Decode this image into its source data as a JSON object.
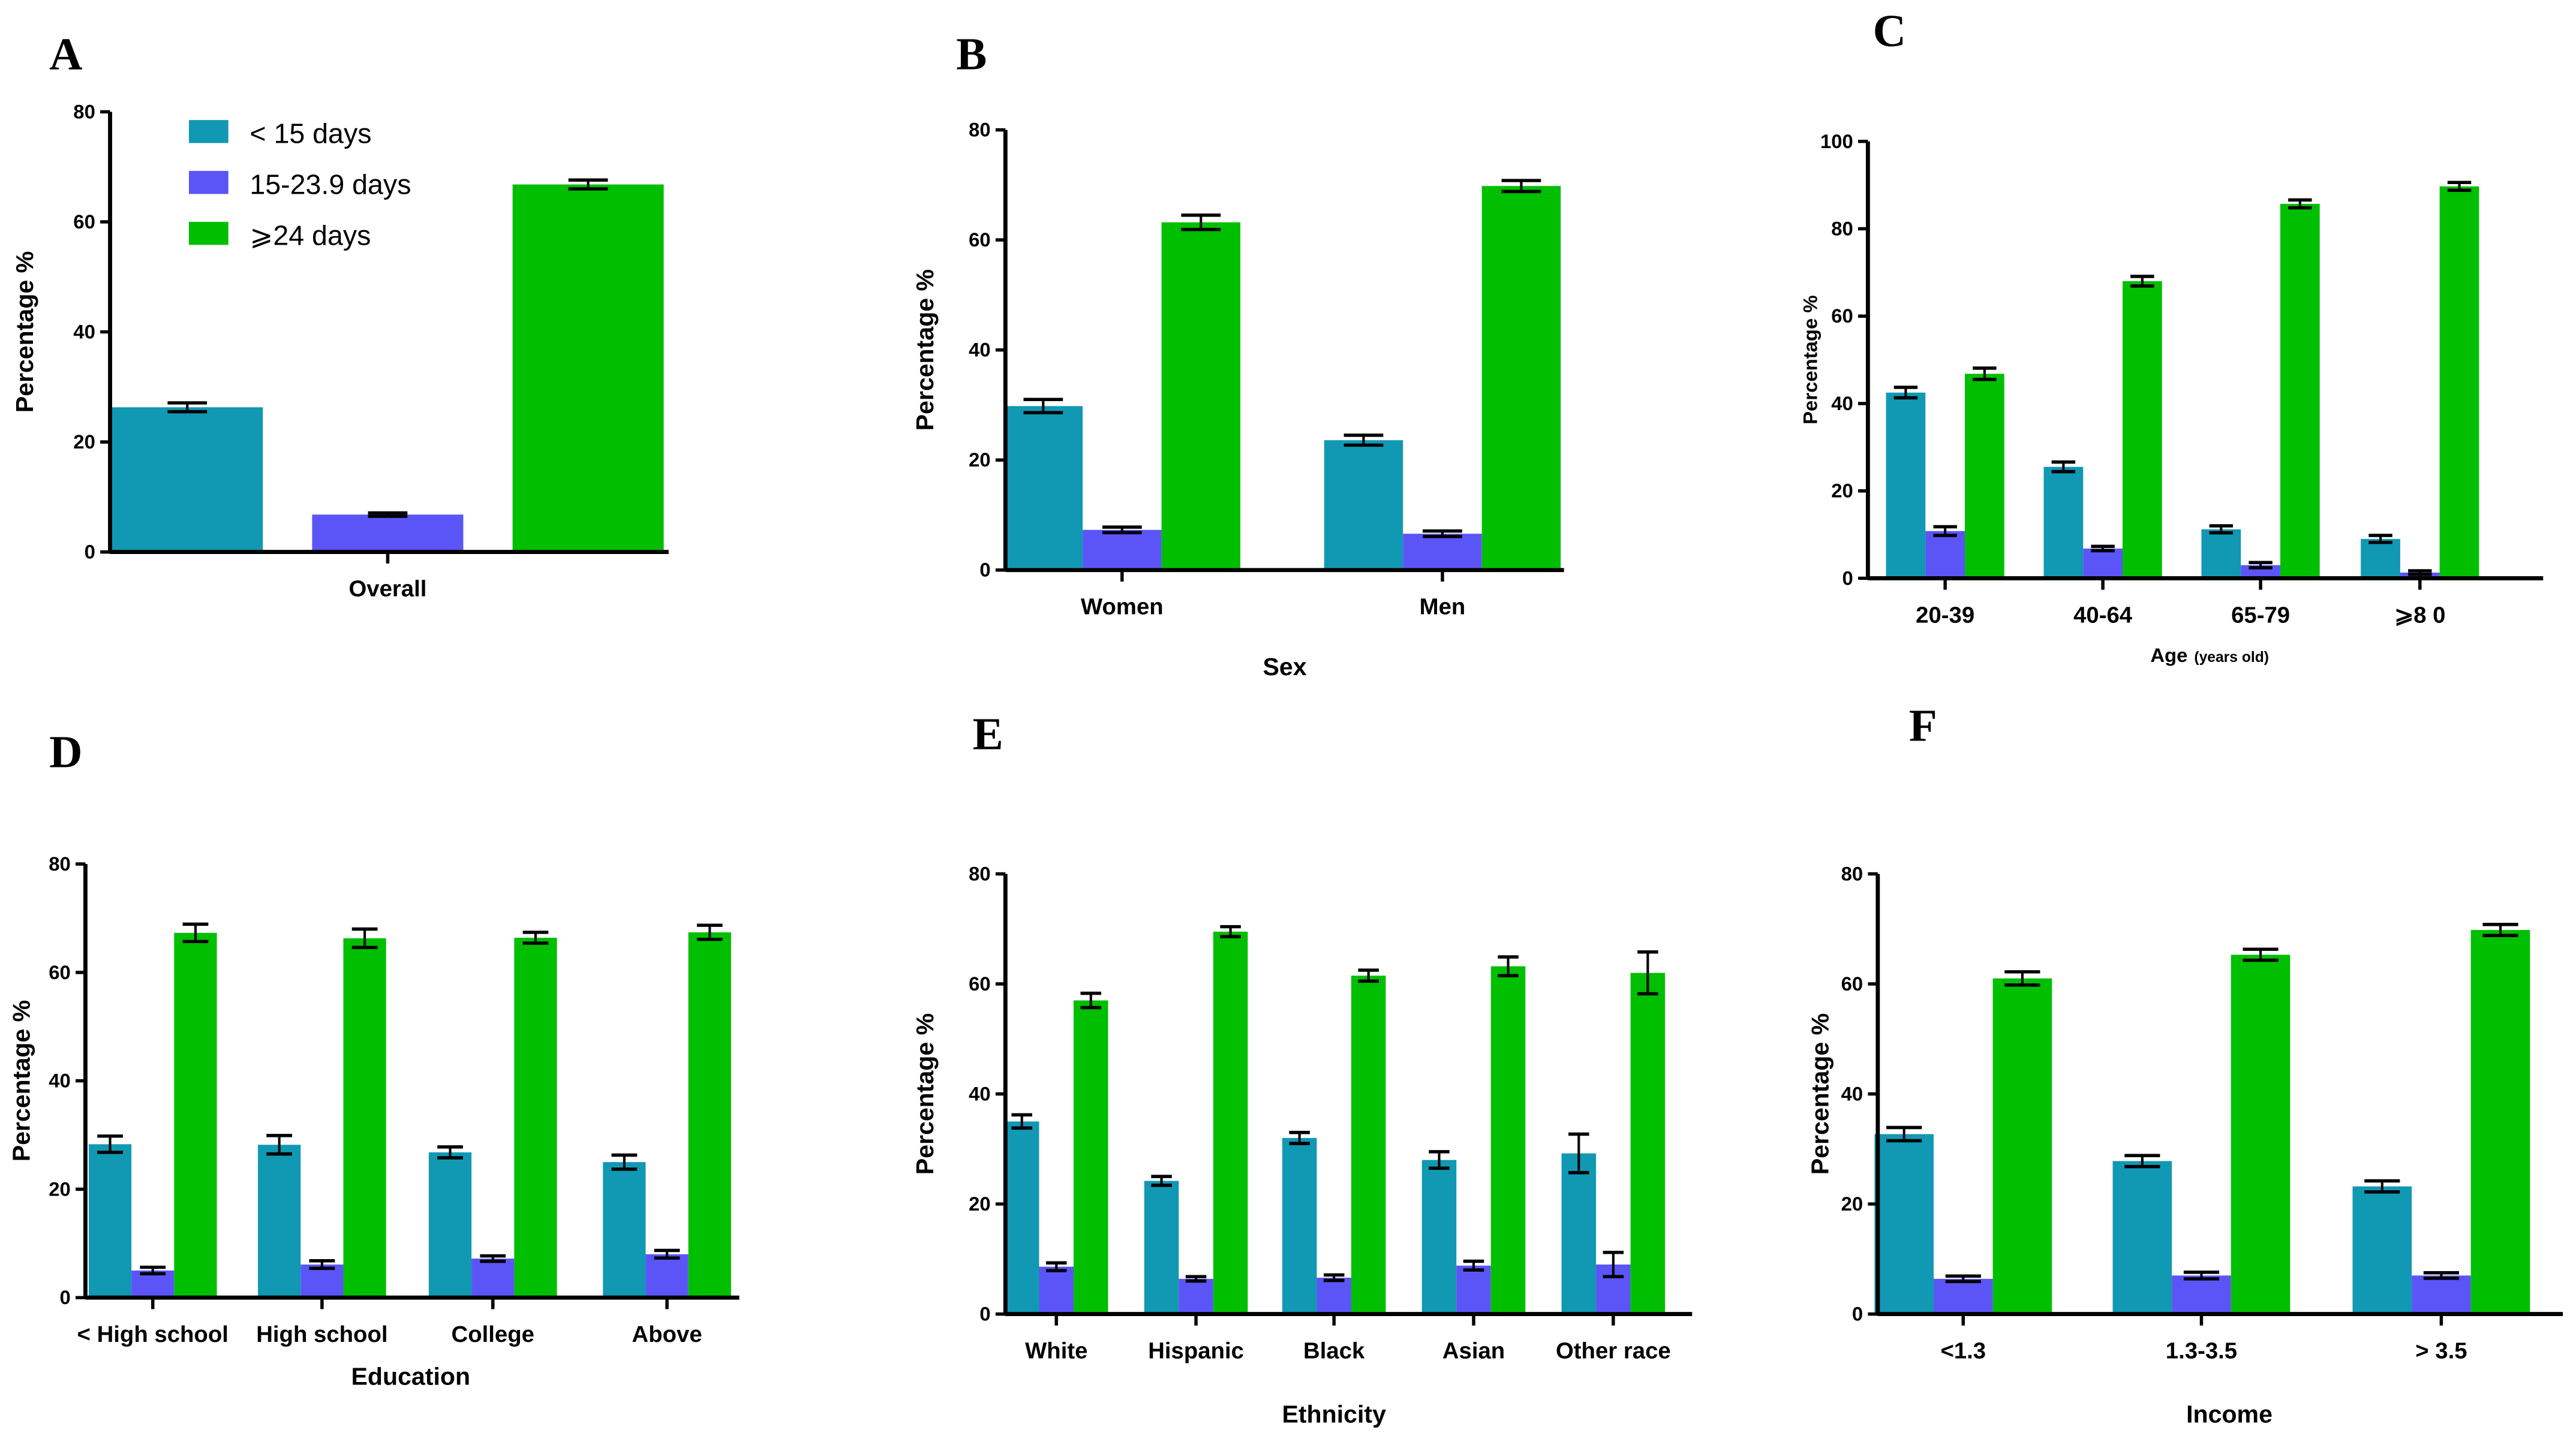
{
  "colors": {
    "lt15": "#1198b3",
    "mid": "#5b55f7",
    "ge24": "#00bf00"
  },
  "legend": [
    "< 15 days",
    "15-23.9 days",
    "⩾24 days"
  ],
  "chart_data": [
    {
      "panel": "A",
      "type": "bar",
      "ylabel": "Percentage %",
      "xlabel": "",
      "ylim": [
        0,
        80
      ],
      "yticks": [
        0,
        20,
        40,
        60,
        80
      ],
      "categories": [
        "Overall"
      ],
      "series": [
        {
          "name": "< 15 days",
          "values": [
            26.3
          ],
          "err": [
            0.8
          ]
        },
        {
          "name": "15-23.9 days",
          "values": [
            6.8
          ],
          "err": [
            0.3
          ]
        },
        {
          "name": "⩾24 days",
          "values": [
            66.8
          ],
          "err": [
            0.8
          ]
        }
      ]
    },
    {
      "panel": "B",
      "type": "bar",
      "ylabel": "Percentage %",
      "xlabel": "Sex",
      "ylim": [
        0,
        80
      ],
      "yticks": [
        0,
        20,
        40,
        60,
        80
      ],
      "categories": [
        "Women",
        "Men"
      ],
      "series": [
        {
          "name": "< 15 days",
          "values": [
            29.8,
            23.6
          ],
          "err": [
            1.2,
            0.9
          ]
        },
        {
          "name": "15-23.9 days",
          "values": [
            7.3,
            6.6
          ],
          "err": [
            0.5,
            0.5
          ]
        },
        {
          "name": "⩾24 days",
          "values": [
            63.2,
            69.8
          ],
          "err": [
            1.3,
            1.0
          ]
        }
      ]
    },
    {
      "panel": "C",
      "type": "bar",
      "ylabel": "Percentage %",
      "xlabel": "Age",
      "xlabel_note": "(years old)",
      "ylim": [
        0,
        100
      ],
      "yticks": [
        0,
        20,
        40,
        60,
        80,
        100
      ],
      "categories": [
        "20-39",
        "40-64",
        "65-79",
        "⩾8 0"
      ],
      "series": [
        {
          "name": "< 15 days",
          "values": [
            42.5,
            25.5,
            11.2,
            9.0
          ],
          "err": [
            1.2,
            1.1,
            0.8,
            0.8
          ]
        },
        {
          "name": "15-23.9 days",
          "values": [
            10.8,
            6.8,
            3.0,
            1.3
          ],
          "err": [
            1.0,
            0.5,
            0.6,
            0.4
          ]
        },
        {
          "name": "⩾24 days",
          "values": [
            46.8,
            68.0,
            85.7,
            89.7
          ],
          "err": [
            1.3,
            1.1,
            0.9,
            0.9
          ]
        }
      ]
    },
    {
      "panel": "D",
      "type": "bar",
      "ylabel": "Percentage %",
      "xlabel": "Education",
      "ylim": [
        0,
        80
      ],
      "yticks": [
        0,
        20,
        40,
        60,
        80
      ],
      "categories": [
        "< High school",
        "High school",
        "College",
        "Above"
      ],
      "series": [
        {
          "name": "< 15 days",
          "values": [
            28.3,
            28.2,
            26.8,
            25.0
          ],
          "err": [
            1.5,
            1.7,
            1.0,
            1.3
          ]
        },
        {
          "name": "15-23.9 days",
          "values": [
            5.0,
            6.1,
            7.2,
            8.0
          ],
          "err": [
            0.6,
            0.7,
            0.5,
            0.7
          ]
        },
        {
          "name": "⩾24 days",
          "values": [
            67.3,
            66.3,
            66.4,
            67.4
          ],
          "err": [
            1.6,
            1.7,
            1.0,
            1.3
          ]
        }
      ]
    },
    {
      "panel": "E",
      "type": "bar",
      "ylabel": "Percentage %",
      "xlabel": "Ethnicity",
      "ylim": [
        0,
        80
      ],
      "yticks": [
        0,
        20,
        40,
        60,
        80
      ],
      "categories": [
        "White",
        "Hispanic",
        "Black",
        "Asian",
        "Other race"
      ],
      "series": [
        {
          "name": "< 15 days",
          "values": [
            35.0,
            24.2,
            32.0,
            28.0,
            29.2
          ],
          "err": [
            1.2,
            0.8,
            1.0,
            1.5,
            3.5
          ]
        },
        {
          "name": "15-23.9 days",
          "values": [
            8.6,
            6.4,
            6.6,
            8.8,
            9.0
          ],
          "err": [
            0.7,
            0.4,
            0.5,
            0.8,
            2.2
          ]
        },
        {
          "name": "⩾24 days",
          "values": [
            57.0,
            69.5,
            61.5,
            63.2,
            62.0
          ],
          "err": [
            1.3,
            0.9,
            1.0,
            1.7,
            3.8
          ]
        }
      ]
    },
    {
      "panel": "F",
      "type": "bar",
      "ylabel": "Percentage %",
      "xlabel": "Income",
      "ylim": [
        0,
        80
      ],
      "yticks": [
        0,
        20,
        40,
        60,
        80
      ],
      "categories": [
        "<1.3",
        "1.3-3.5",
        "> 3.5"
      ],
      "series": [
        {
          "name": "< 15 days",
          "values": [
            32.7,
            27.8,
            23.2
          ],
          "err": [
            1.2,
            1.0,
            1.0
          ]
        },
        {
          "name": "15-23.9 days",
          "values": [
            6.4,
            7.0,
            7.0
          ],
          "err": [
            0.5,
            0.6,
            0.5
          ]
        },
        {
          "name": "⩾24 days",
          "values": [
            61.0,
            65.3,
            69.8
          ],
          "err": [
            1.2,
            1.0,
            1.0
          ]
        }
      ]
    }
  ]
}
